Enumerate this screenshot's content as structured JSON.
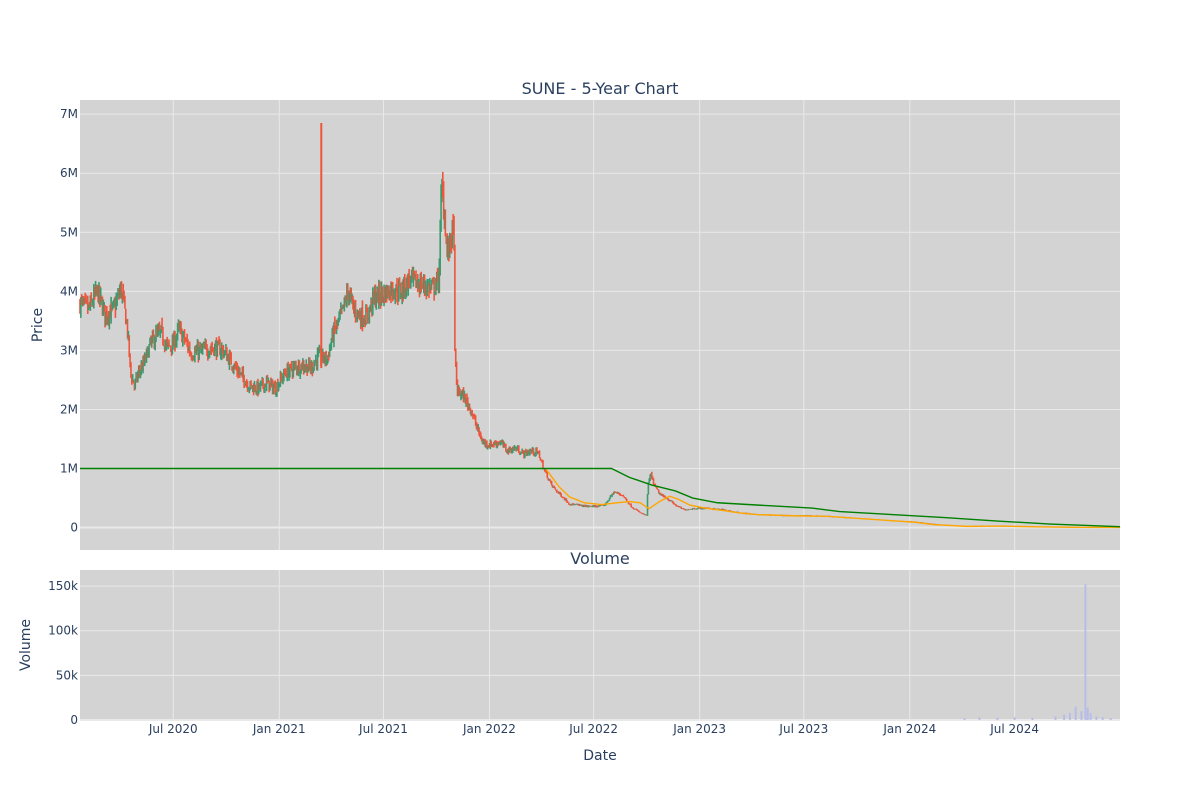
{
  "chart_data": [
    {
      "type": "candlestick",
      "title": "SUNE - 5-Year Chart",
      "ylabel": "Price",
      "ylim": [
        -380000,
        7240000
      ],
      "y_ticks": [
        0,
        1000000,
        2000000,
        3000000,
        4000000,
        5000000,
        6000000,
        7000000
      ],
      "y_tick_labels": [
        "0",
        "1M",
        "2M",
        "3M",
        "4M",
        "5M",
        "6M",
        "7M"
      ],
      "xlim": [
        "2020-01-21",
        "2024-12-31"
      ],
      "grid": true,
      "legend": "none",
      "colors": {
        "plot_bg": "#d3d3d3",
        "grid": "#e9e9e9",
        "increasing": "#3d9970",
        "decreasing": "#ef553b",
        "ma_short": "#ffa500",
        "ma_long": "#008000",
        "volume_bar": "#b8bde8",
        "text": "#2a3f5f"
      },
      "price_path": [
        [
          "2020-01-21",
          3800000
        ],
        [
          "2020-02-05",
          3700000
        ],
        [
          "2020-02-20",
          4000000
        ],
        [
          "2020-03-05",
          3600000
        ],
        [
          "2020-03-20",
          3700000
        ],
        [
          "2020-04-01",
          4050000
        ],
        [
          "2020-04-05",
          3850000
        ],
        [
          "2020-04-12",
          3400000
        ],
        [
          "2020-04-18",
          2600000
        ],
        [
          "2020-04-25",
          2400000
        ],
        [
          "2020-05-01",
          2600000
        ],
        [
          "2020-05-12",
          2800000
        ],
        [
          "2020-05-22",
          3100000
        ],
        [
          "2020-06-01",
          3250000
        ],
        [
          "2020-06-10",
          3300000
        ],
        [
          "2020-06-20",
          3050000
        ],
        [
          "2020-07-01",
          3100000
        ],
        [
          "2020-07-10",
          3350000
        ],
        [
          "2020-07-20",
          3200000
        ],
        [
          "2020-08-01",
          2950000
        ],
        [
          "2020-08-20",
          3000000
        ],
        [
          "2020-09-10",
          3050000
        ],
        [
          "2020-09-25",
          3000000
        ],
        [
          "2020-10-10",
          2800000
        ],
        [
          "2020-10-25",
          2600000
        ],
        [
          "2020-11-10",
          2400000
        ],
        [
          "2020-11-25",
          2350000
        ],
        [
          "2020-12-10",
          2450000
        ],
        [
          "2020-12-25",
          2350000
        ],
        [
          "2021-01-10",
          2600000
        ],
        [
          "2021-01-25",
          2700000
        ],
        [
          "2021-02-10",
          2750000
        ],
        [
          "2021-02-25",
          2700000
        ],
        [
          "2021-03-10",
          2900000
        ],
        [
          "2021-03-25",
          2850000
        ],
        [
          "2021-04-05",
          3300000
        ],
        [
          "2021-04-15",
          3500000
        ],
        [
          "2021-04-22",
          3700000
        ],
        [
          "2021-05-01",
          4000000
        ],
        [
          "2021-05-10",
          3700000
        ],
        [
          "2021-05-20",
          3600000
        ],
        [
          "2021-06-01",
          3550000
        ],
        [
          "2021-06-15",
          3900000
        ],
        [
          "2021-07-01",
          3950000
        ],
        [
          "2021-07-15",
          4050000
        ],
        [
          "2021-08-01",
          4000000
        ],
        [
          "2021-08-15",
          4200000
        ],
        [
          "2021-08-25",
          4150000
        ],
        [
          "2021-09-10",
          4100000
        ],
        [
          "2021-09-25",
          4050000
        ],
        [
          "2021-10-05",
          4200000
        ],
        [
          "2021-10-10",
          5800000
        ],
        [
          "2021-10-15",
          5300000
        ],
        [
          "2021-10-20",
          4600000
        ],
        [
          "2021-10-28",
          5000000
        ],
        [
          "2021-11-01",
          4950000
        ],
        [
          "2021-11-02",
          2900000
        ],
        [
          "2021-11-06",
          2300000
        ],
        [
          "2021-11-15",
          2250000
        ],
        [
          "2021-11-30",
          2000000
        ],
        [
          "2021-12-10",
          1700000
        ],
        [
          "2021-12-20",
          1450000
        ],
        [
          "2022-01-01",
          1400000
        ],
        [
          "2022-01-20",
          1450000
        ],
        [
          "2022-02-01",
          1300000
        ],
        [
          "2022-02-15",
          1350000
        ],
        [
          "2022-03-01",
          1250000
        ],
        [
          "2022-03-15",
          1300000
        ],
        [
          "2022-03-28",
          1250000
        ],
        [
          "2022-04-05",
          1000000
        ],
        [
          "2022-04-20",
          700000
        ],
        [
          "2022-05-05",
          550000
        ],
        [
          "2022-05-20",
          400000
        ],
        [
          "2022-06-05",
          380000
        ],
        [
          "2022-06-20",
          360000
        ],
        [
          "2022-07-05",
          360000
        ],
        [
          "2022-07-20",
          380000
        ],
        [
          "2022-08-05",
          600000
        ],
        [
          "2022-08-20",
          550000
        ],
        [
          "2022-09-05",
          350000
        ],
        [
          "2022-09-20",
          250000
        ],
        [
          "2022-10-01",
          200000
        ],
        [
          "2022-10-03",
          700000
        ],
        [
          "2022-10-08",
          900000
        ],
        [
          "2022-10-15",
          700000
        ],
        [
          "2022-10-25",
          550000
        ],
        [
          "2022-11-05",
          500000
        ],
        [
          "2022-11-20",
          380000
        ],
        [
          "2022-12-05",
          300000
        ],
        [
          "2022-12-20",
          320000
        ],
        [
          "2023-01-10",
          330000
        ],
        [
          "2023-02-10",
          300000
        ],
        [
          "2023-03-10",
          250000
        ],
        [
          "2023-04-10",
          220000
        ],
        [
          "2023-05-10",
          210000
        ],
        [
          "2023-06-10",
          200000
        ],
        [
          "2023-07-10",
          200000
        ],
        [
          "2023-08-10",
          190000
        ],
        [
          "2023-09-10",
          170000
        ],
        [
          "2023-10-10",
          150000
        ],
        [
          "2023-11-10",
          130000
        ],
        [
          "2023-12-10",
          110000
        ],
        [
          "2024-01-10",
          100000
        ],
        [
          "2024-02-10",
          60000
        ],
        [
          "2024-03-10",
          40000
        ],
        [
          "2024-04-10",
          20000
        ],
        [
          "2024-05-10",
          30000
        ],
        [
          "2024-06-10",
          20000
        ],
        [
          "2024-07-10",
          15000
        ],
        [
          "2024-08-10",
          10000
        ],
        [
          "2024-09-10",
          5000
        ],
        [
          "2024-10-10",
          3000
        ],
        [
          "2024-11-10",
          2000
        ],
        [
          "2024-12-31",
          1000
        ]
      ],
      "price_spikes": [
        [
          "2021-03-15",
          2700000,
          6850000
        ]
      ],
      "series": [
        {
          "role": "ma_short",
          "points": [
            [
              "2022-04-10",
              980000
            ],
            [
              "2022-05-01",
              700000
            ],
            [
              "2022-05-20",
              520000
            ],
            [
              "2022-06-15",
              420000
            ],
            [
              "2022-07-15",
              390000
            ],
            [
              "2022-08-10",
              420000
            ],
            [
              "2022-09-01",
              440000
            ],
            [
              "2022-09-20",
              420000
            ],
            [
              "2022-10-05",
              320000
            ],
            [
              "2022-10-25",
              450000
            ],
            [
              "2022-11-10",
              530000
            ],
            [
              "2022-11-25",
              480000
            ],
            [
              "2022-12-15",
              380000
            ],
            [
              "2023-01-10",
              330000
            ],
            [
              "2023-02-10",
              290000
            ],
            [
              "2023-03-10",
              250000
            ],
            [
              "2023-04-10",
              220000
            ],
            [
              "2023-06-10",
              200000
            ],
            [
              "2023-08-10",
              190000
            ],
            [
              "2023-10-10",
              150000
            ],
            [
              "2023-12-10",
              110000
            ],
            [
              "2024-01-10",
              90000
            ],
            [
              "2024-02-10",
              50000
            ],
            [
              "2024-04-10",
              20000
            ],
            [
              "2024-06-10",
              25000
            ],
            [
              "2024-08-10",
              12000
            ],
            [
              "2024-10-10",
              4000
            ],
            [
              "2024-12-31",
              1500
            ]
          ]
        },
        {
          "role": "ma_long",
          "points": [
            [
              "2020-01-21",
              1000000
            ],
            [
              "2022-08-01",
              1000000
            ],
            [
              "2022-09-01",
              850000
            ],
            [
              "2022-10-10",
              720000
            ],
            [
              "2022-11-20",
              620000
            ],
            [
              "2022-12-20",
              500000
            ],
            [
              "2023-02-01",
              420000
            ],
            [
              "2023-05-01",
              370000
            ],
            [
              "2023-07-15",
              330000
            ],
            [
              "2023-09-01",
              270000
            ],
            [
              "2023-12-01",
              220000
            ],
            [
              "2024-03-01",
              170000
            ],
            [
              "2024-06-01",
              110000
            ],
            [
              "2024-09-01",
              60000
            ],
            [
              "2024-12-31",
              15000
            ]
          ]
        }
      ]
    },
    {
      "type": "bar",
      "title": "Volume",
      "xlabel": "Date",
      "ylabel": "Volume",
      "ylim": [
        0,
        168000
      ],
      "y_ticks": [
        0,
        50000,
        100000,
        150000
      ],
      "y_tick_labels": [
        "0",
        "50k",
        "100k",
        "150k"
      ],
      "x_ticks": [
        "2020-07-01",
        "2021-01-01",
        "2021-07-01",
        "2022-01-01",
        "2022-07-01",
        "2023-01-01",
        "2023-07-01",
        "2024-01-01",
        "2024-07-01"
      ],
      "x_tick_labels": [
        "Jul 2020",
        "Jan 2021",
        "Jul 2021",
        "Jan 2022",
        "Jul 2022",
        "Jan 2023",
        "Jul 2023",
        "Jan 2024",
        "Jul 2024"
      ],
      "grid": true,
      "bars": [
        [
          "2024-04-05",
          2000
        ],
        [
          "2024-05-01",
          3000
        ],
        [
          "2024-06-01",
          2500
        ],
        [
          "2024-07-01",
          3000
        ],
        [
          "2024-08-01",
          2500
        ],
        [
          "2024-09-10",
          4000
        ],
        [
          "2024-09-25",
          6000
        ],
        [
          "2024-10-05",
          8000
        ],
        [
          "2024-10-15",
          15000
        ],
        [
          "2024-10-25",
          10000
        ],
        [
          "2024-11-01",
          152000
        ],
        [
          "2024-11-05",
          14000
        ],
        [
          "2024-11-10",
          8000
        ],
        [
          "2024-11-20",
          4000
        ],
        [
          "2024-12-01",
          3000
        ],
        [
          "2024-12-15",
          2000
        ]
      ]
    }
  ]
}
